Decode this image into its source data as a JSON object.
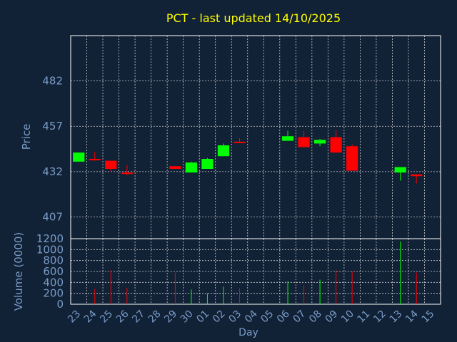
{
  "chart_data": {
    "type": "candlestick",
    "title": "PCT - last updated 14/10/2025",
    "xlabel": "Day",
    "price_panel": {
      "ylabel": "Price",
      "yticks": [
        407,
        432,
        457,
        482
      ],
      "ylim": [
        395,
        507
      ]
    },
    "volume_panel": {
      "ylabel": "Volume (0000)",
      "yticks": [
        0,
        200,
        400,
        600,
        800,
        1000,
        1200
      ],
      "ylim": [
        0,
        1200
      ]
    },
    "x_labels": [
      "23",
      "24",
      "25",
      "26",
      "27",
      "28",
      "29",
      "30",
      "01",
      "02",
      "03",
      "04",
      "05",
      "06",
      "07",
      "08",
      "09",
      "10",
      "11",
      "12",
      "13",
      "14",
      "15"
    ],
    "candles": [
      {
        "x": 0,
        "open": 437.5,
        "close": 442.5,
        "high": 442.5,
        "low": 437.5,
        "volume": 0
      },
      {
        "x": 1,
        "open": 439.0,
        "close": 438.5,
        "high": 443.0,
        "low": 438.0,
        "volume": 280
      },
      {
        "x": 2,
        "open": 438.0,
        "close": 433.5,
        "high": 438.0,
        "low": 432.0,
        "volume": 620
      },
      {
        "x": 3,
        "open": 431.5,
        "close": 431.0,
        "high": 435.5,
        "low": 430.0,
        "volume": 300
      },
      {
        "x": 6,
        "open": 435.0,
        "close": 433.5,
        "high": 435.0,
        "low": 433.5,
        "volume": 580
      },
      {
        "x": 7,
        "open": 431.5,
        "close": 437.0,
        "high": 437.5,
        "low": 431.5,
        "volume": 270
      },
      {
        "x": 8,
        "open": 433.5,
        "close": 439.0,
        "high": 439.5,
        "low": 433.5,
        "volume": 200
      },
      {
        "x": 9,
        "open": 440.5,
        "close": 446.5,
        "high": 447.5,
        "low": 440.5,
        "volume": 320
      },
      {
        "x": 10,
        "open": 448.5,
        "close": 448.0,
        "high": 450.5,
        "low": 448.0,
        "volume": 290
      },
      {
        "x": 13,
        "open": 449.0,
        "close": 451.5,
        "high": 454.5,
        "low": 449.0,
        "volume": 420
      },
      {
        "x": 14,
        "open": 451.0,
        "close": 445.5,
        "high": 454.5,
        "low": 445.5,
        "volume": 350
      },
      {
        "x": 15,
        "open": 447.5,
        "close": 449.5,
        "high": 450.0,
        "low": 446.0,
        "volume": 450
      },
      {
        "x": 16,
        "open": 451.0,
        "close": 442.5,
        "high": 455.0,
        "low": 442.5,
        "volume": 620
      },
      {
        "x": 17,
        "open": 446.0,
        "close": 432.5,
        "high": 447.0,
        "low": 432.5,
        "volume": 600
      },
      {
        "x": 20,
        "open": 431.5,
        "close": 434.5,
        "high": 434.5,
        "low": 427.0,
        "volume": 1150
      },
      {
        "x": 21,
        "open": 430.5,
        "close": 429.5,
        "high": 430.5,
        "low": 425.5,
        "volume": 580
      }
    ],
    "colors": {
      "up": "#00ff00",
      "down": "#ff0000",
      "grid": "#d0d0d0",
      "axis": "#ffffff",
      "text": "#7a9cc7",
      "title": "#ffff00",
      "background": "#112136"
    }
  }
}
